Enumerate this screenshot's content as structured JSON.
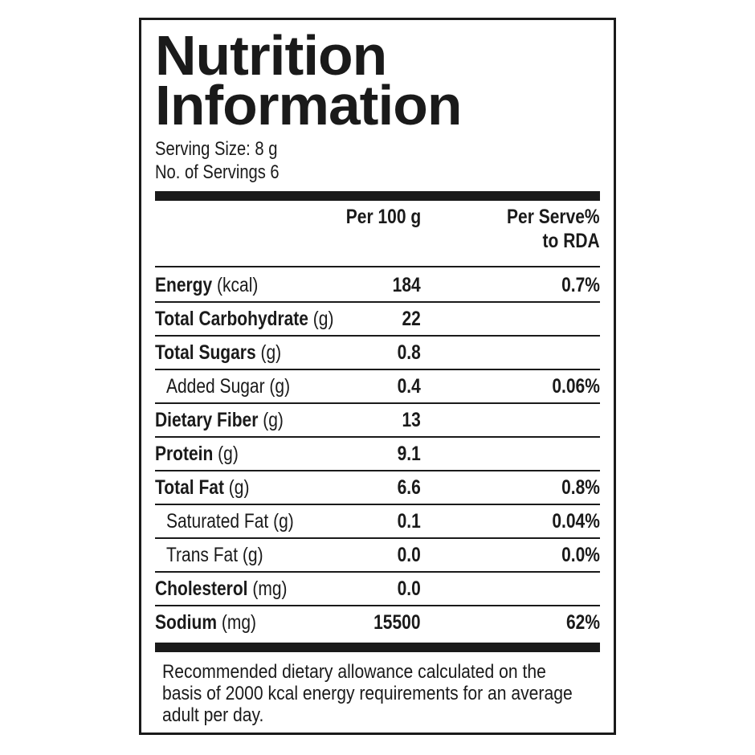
{
  "title": {
    "line1": "Nutrition",
    "line2": "Information"
  },
  "serving_size": "Serving Size: 8 g",
  "servings": "No. of Servings 6",
  "headers": {
    "per100": "Per 100 g",
    "perserve_line1": "Per Serve%",
    "perserve_line2": "to RDA"
  },
  "rows": [
    {
      "name": "Energy",
      "unit": "(kcal)",
      "per100": "184",
      "rda": "0.7%"
    },
    {
      "name": "Total Carbohydrate",
      "unit": "(g)",
      "per100": "22",
      "rda": ""
    },
    {
      "name": "Total Sugars",
      "unit": "(g)",
      "per100": "0.8",
      "rda": ""
    },
    {
      "name": "",
      "unit": "Added Sugar (g)",
      "per100": "0.4",
      "rda": "0.06%"
    },
    {
      "name": "Dietary Fiber",
      "unit": "(g)",
      "per100": "13",
      "rda": ""
    },
    {
      "name": "Protein",
      "unit": "(g)",
      "per100": "9.1",
      "rda": ""
    },
    {
      "name": "Total Fat",
      "unit": "(g)",
      "per100": "6.6",
      "rda": "0.8%"
    },
    {
      "name": "",
      "unit": "Saturated Fat (g)",
      "per100": "0.1",
      "rda": "0.04%"
    },
    {
      "name": "",
      "unit": "Trans Fat (g)",
      "per100": "0.0",
      "rda": "0.0%"
    },
    {
      "name": "Cholesterol",
      "unit": "(mg)",
      "per100": "0.0",
      "rda": ""
    },
    {
      "name": "Sodium",
      "unit": "(mg)",
      "per100": "15500",
      "rda": "62%"
    }
  ],
  "footnote": {
    "line1": "Recommended dietary allowance calculated on the",
    "line2": "basis of 2000 kcal energy requirements for an average",
    "line3": "adult per day."
  }
}
